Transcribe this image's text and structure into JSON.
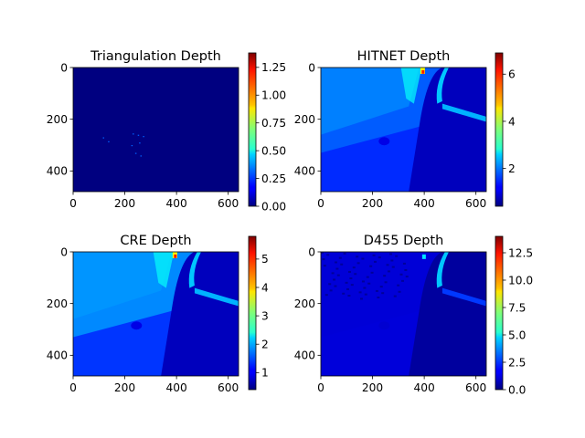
{
  "figure": {
    "background": "#ffffff"
  },
  "colormap": "jet",
  "chart_data": [
    {
      "type": "heatmap",
      "title": "Triangulation Depth",
      "xlabel": "",
      "ylabel": "",
      "xlim": [
        0,
        640
      ],
      "ylim": [
        480,
        0
      ],
      "x_ticks": [
        "0",
        "200",
        "400",
        "600"
      ],
      "y_ticks": [
        "0",
        "200",
        "400"
      ],
      "colorbar": {
        "min": 0.0,
        "max": 1.38,
        "ticks": [
          {
            "value": 0.0,
            "label": "0.00"
          },
          {
            "value": 0.25,
            "label": "0.25"
          },
          {
            "value": 0.5,
            "label": "0.50"
          },
          {
            "value": 0.75,
            "label": "0.75"
          },
          {
            "value": 1.0,
            "label": "1.00"
          },
          {
            "value": 1.25,
            "label": "1.25"
          }
        ]
      },
      "scene": "sparse",
      "base_value": 0.0
    },
    {
      "type": "heatmap",
      "title": "HITNET Depth",
      "xlabel": "",
      "ylabel": "",
      "xlim": [
        0,
        640
      ],
      "ylim": [
        480,
        0
      ],
      "x_ticks": [
        "0",
        "200",
        "400",
        "600"
      ],
      "y_ticks": [
        "0",
        "200",
        "400"
      ],
      "colorbar": {
        "min": 0.4,
        "max": 6.9,
        "ticks": [
          {
            "value": 2,
            "label": "2"
          },
          {
            "value": 4,
            "label": "4"
          },
          {
            "value": 6,
            "label": "6"
          }
        ]
      },
      "scene": "dense",
      "base_value": 1.8
    },
    {
      "type": "heatmap",
      "title": "CRE Depth",
      "xlabel": "",
      "ylabel": "",
      "xlim": [
        0,
        640
      ],
      "ylim": [
        480,
        0
      ],
      "x_ticks": [
        "0",
        "200",
        "400",
        "600"
      ],
      "y_ticks": [
        "0",
        "200",
        "400"
      ],
      "colorbar": {
        "min": 0.4,
        "max": 5.8,
        "ticks": [
          {
            "value": 1,
            "label": "1"
          },
          {
            "value": 2,
            "label": "2"
          },
          {
            "value": 3,
            "label": "3"
          },
          {
            "value": 4,
            "label": "4"
          },
          {
            "value": 5,
            "label": "5"
          }
        ]
      },
      "scene": "dense",
      "base_value": 1.8
    },
    {
      "type": "heatmap",
      "title": "D455 Depth",
      "xlabel": "",
      "ylabel": "",
      "xlim": [
        0,
        640
      ],
      "ylim": [
        480,
        0
      ],
      "x_ticks": [
        "0",
        "200",
        "400",
        "600"
      ],
      "y_ticks": [
        "0",
        "200",
        "400"
      ],
      "colorbar": {
        "min": 0.0,
        "max": 14.0,
        "ticks": [
          {
            "value": 0.0,
            "label": "0.0"
          },
          {
            "value": 2.5,
            "label": "2.5"
          },
          {
            "value": 5.0,
            "label": "5.0"
          },
          {
            "value": 7.5,
            "label": "7.5"
          },
          {
            "value": 10.0,
            "label": "10.0"
          },
          {
            "value": 12.5,
            "label": "12.5"
          }
        ]
      },
      "scene": "sensor",
      "base_value": 1.2
    }
  ]
}
